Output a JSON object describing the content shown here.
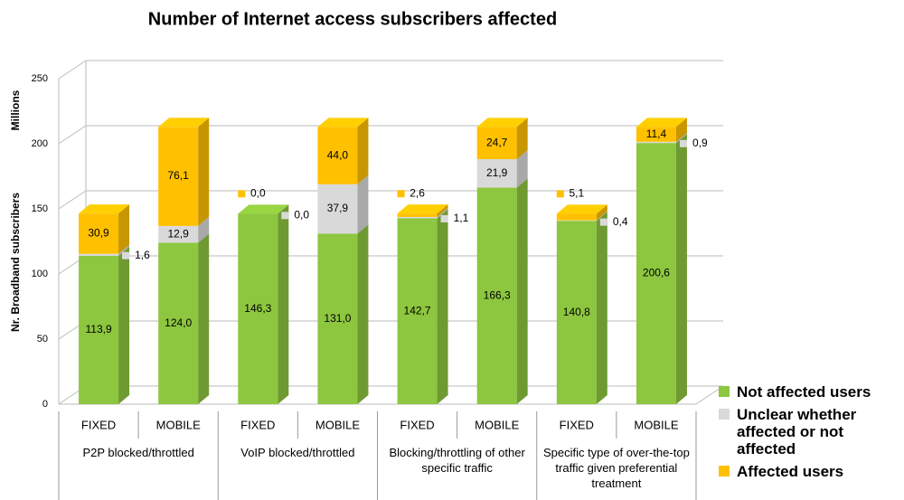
{
  "chart_data": {
    "type": "bar3d_stacked",
    "title": "Number of Internet access subscribers affected",
    "y_label": "Nr. Broadband subscribers",
    "y_unit": "Millions",
    "categories": [
      "FIXED",
      "MOBILE",
      "FIXED",
      "MOBILE",
      "FIXED",
      "MOBILE",
      "FIXED",
      "MOBILE"
    ],
    "group_labels": [
      "P2P blocked/throttled",
      "VoIP blocked/throttled",
      "Blocking/throttling of other specific traffic",
      "Specific type of over-the-top traffic given preferential treatment"
    ],
    "ylim": [
      0,
      250
    ],
    "yticks": [
      0,
      50,
      100,
      150,
      200,
      250
    ],
    "grid": true,
    "series": [
      {
        "name": "Not affected users",
        "color": "#8dc63f",
        "values": [
          113.9,
          124.0,
          146.3,
          131.0,
          142.7,
          166.3,
          140.8,
          200.6
        ],
        "value_labels": [
          "113,9",
          "124,0",
          "146,3",
          "131,0",
          "142,7",
          "166,3",
          "140,8",
          "200,6"
        ]
      },
      {
        "name": "Unclear whether affected or not affected",
        "color": "#d9d9d9",
        "values": [
          1.6,
          12.9,
          0.0,
          37.9,
          1.1,
          21.9,
          0.4,
          0.9
        ],
        "value_labels": [
          "1,6",
          "12,9",
          "0,0",
          "37,9",
          "1,1",
          "21,9",
          "0,4",
          "0,9"
        ]
      },
      {
        "name": "Affected users",
        "color": "#ffc000",
        "values": [
          30.9,
          76.1,
          0.0,
          44.0,
          2.6,
          24.7,
          5.1,
          11.4
        ],
        "value_labels": [
          "30,9",
          "76,1",
          "0,0",
          "44,0",
          "2,6",
          "24,7",
          "5,1",
          "11,4"
        ]
      }
    ]
  }
}
